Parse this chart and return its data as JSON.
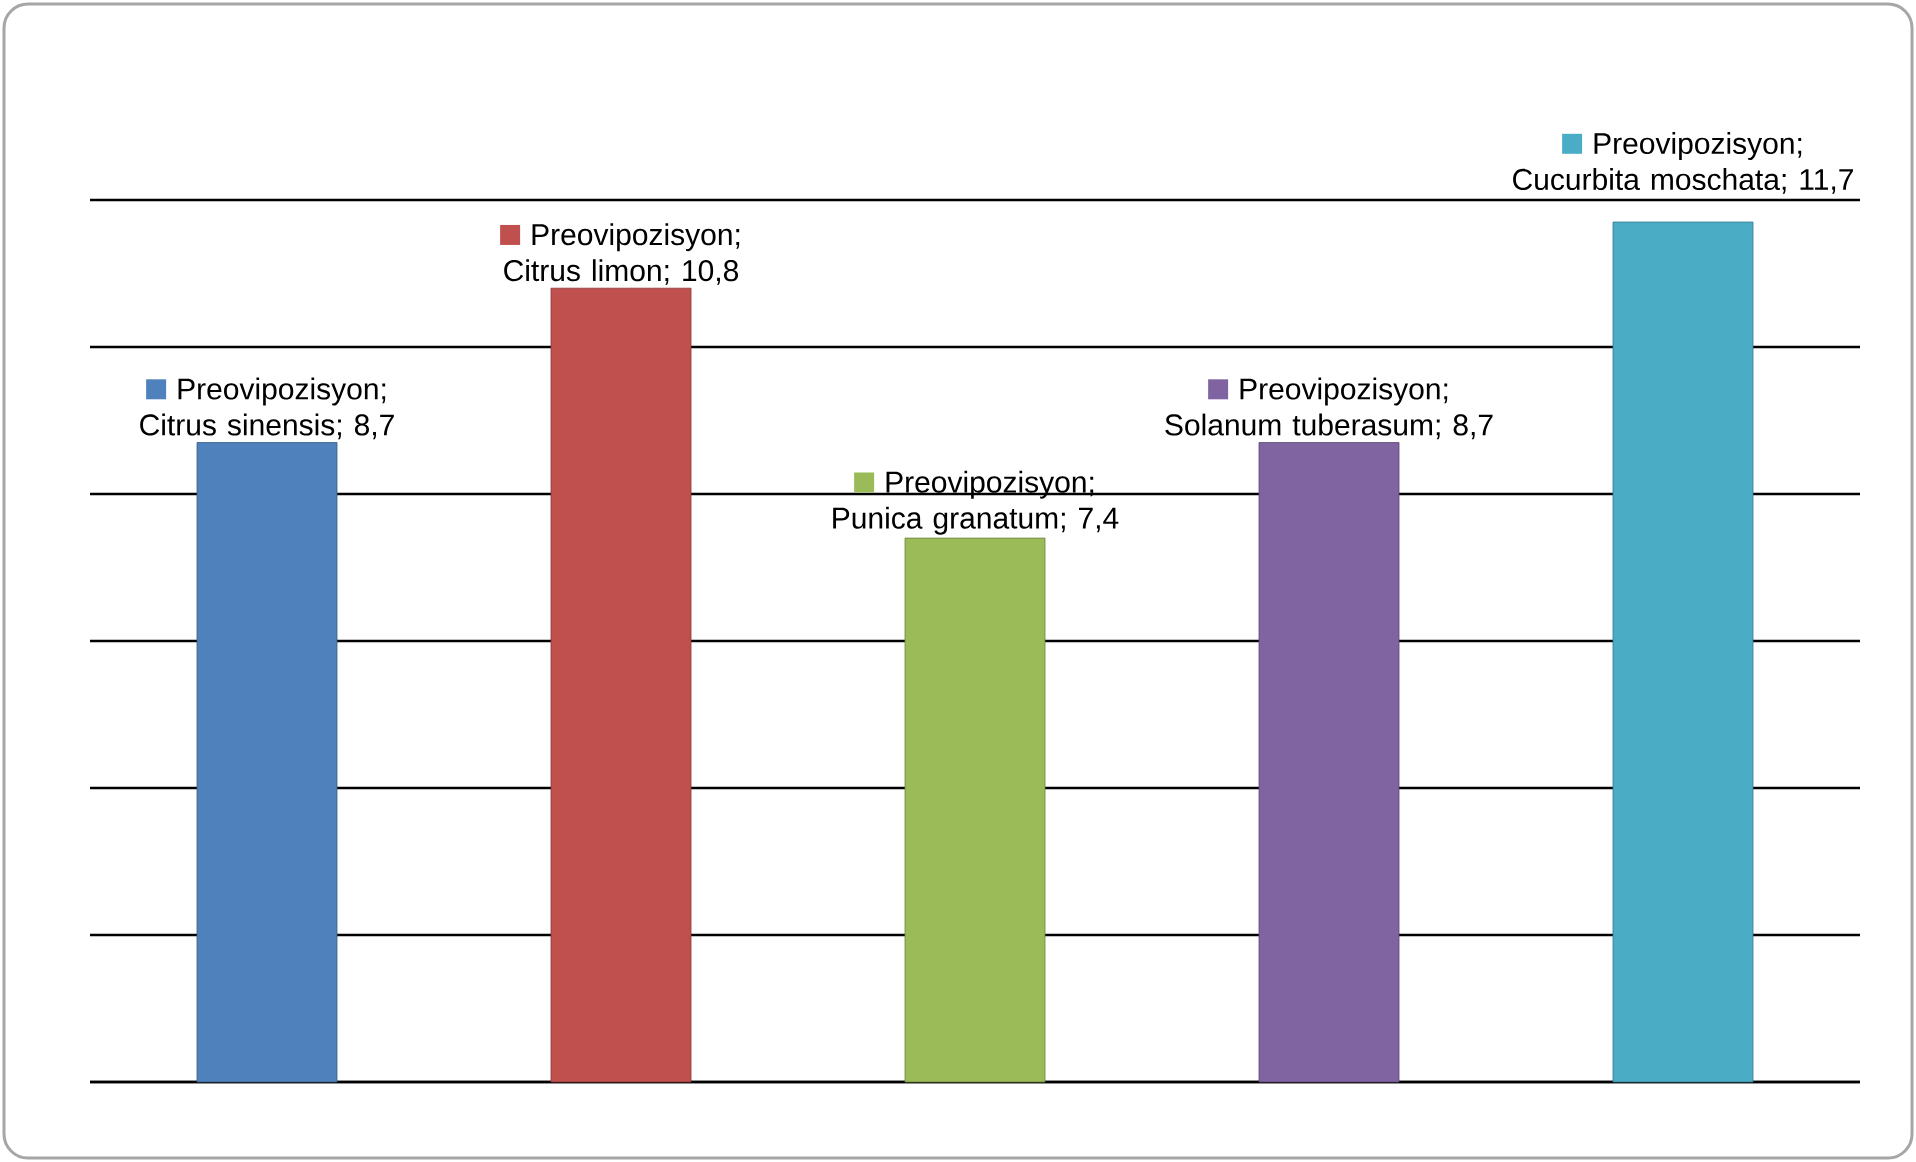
{
  "chart_data": {
    "type": "bar",
    "categories": [
      null,
      null,
      null,
      null,
      null
    ],
    "values": [
      8.7,
      10.8,
      7.4,
      8.7,
      11.7
    ],
    "colors": [
      "#4f81bd",
      "#c0504d",
      "#9bbb59",
      "#8064a2",
      "#4bacc6"
    ],
    "value_labels": [
      "Preovipozisyon; Citrus sinensis; 8,7",
      "Preovipozisyon; Citrus limon; 10,8",
      "Preovipozisyon; Punica granatum; 7,4",
      "Preovipozisyon; Solanum tuberasum; 8,7",
      "Preovipozisyon; Cucurbita moschata; 11,7"
    ],
    "ylim": [
      0,
      12
    ],
    "yticks": [
      0,
      2,
      4,
      6,
      8,
      10,
      12
    ],
    "tick_labels": false,
    "grid": "y"
  }
}
